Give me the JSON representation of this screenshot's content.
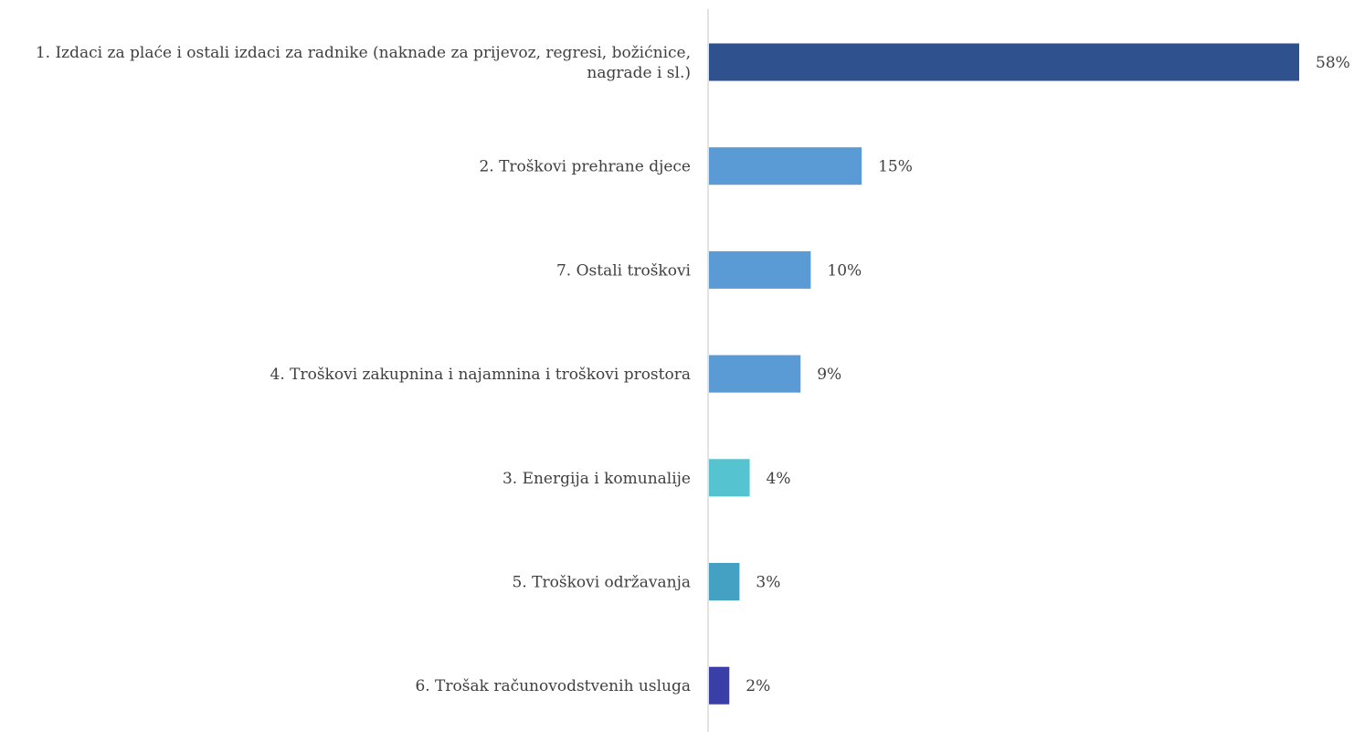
{
  "chart_data": {
    "type": "bar",
    "orientation": "horizontal",
    "title": "",
    "xlabel": "",
    "ylabel": "",
    "xlim": [
      0,
      58
    ],
    "grid": false,
    "legend": "none",
    "categories": [
      [
        "1. Izdaci za plaće i ostali izdaci za radnike (naknade za prijevoz, regresi, božićnice,",
        "nagrade i sl.)"
      ],
      [
        "2. Troškovi prehrane djece"
      ],
      [
        "7. Ostali troškovi"
      ],
      [
        "4. Troškovi zakupnina i najamnina i troškovi prostora"
      ],
      [
        "3. Energija i komunalije"
      ],
      [
        "5. Troškovi održavanja"
      ],
      [
        "6. Trošak računovodstvenih usluga"
      ]
    ],
    "values": [
      58,
      15,
      10,
      9,
      4,
      3,
      2
    ],
    "value_labels": [
      "58%",
      "15%",
      "10%",
      "9%",
      "4%",
      "3%",
      "2%"
    ],
    "colors": [
      "#2f528f",
      "#5b9bd5",
      "#5b9bd5",
      "#5b9bd5",
      "#56c4d0",
      "#44a1c4",
      "#3a3fa8"
    ],
    "axis_color": "#d9d9d9"
  }
}
